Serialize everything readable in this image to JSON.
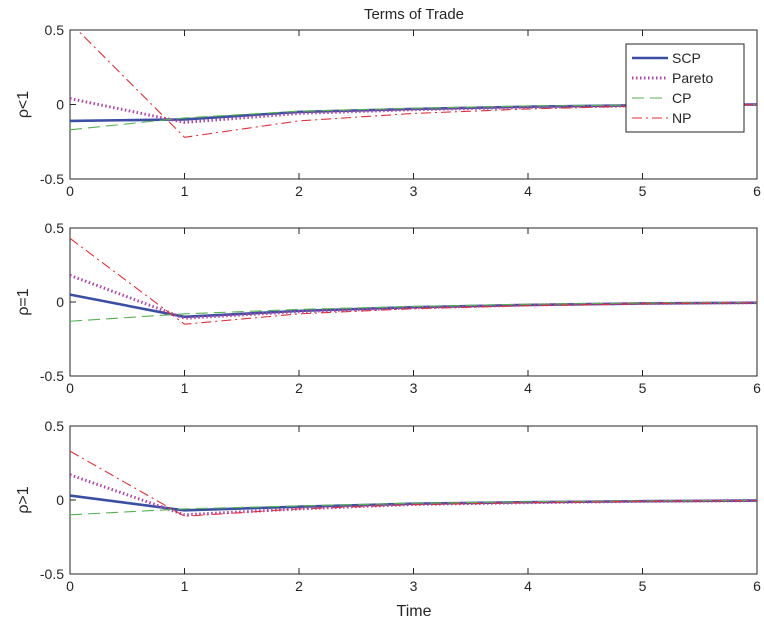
{
  "chart_data": {
    "type": "line",
    "title": "Terms of Trade",
    "xlabel": "Time",
    "xlim": [
      0,
      6
    ],
    "ylim": [
      -0.5,
      0.5
    ],
    "x_ticks": [
      "0",
      "1",
      "2",
      "3",
      "4",
      "5",
      "6"
    ],
    "y_ticks": [
      "-0.5",
      "0",
      "0.5"
    ],
    "grid": false,
    "legend_position": "top-right",
    "legend": [
      "SCP",
      "Pareto",
      "CP",
      "NP"
    ],
    "series_styles": {
      "SCP": {
        "color": "#3a4fa3",
        "dash": "solid"
      },
      "Pareto": {
        "color": "#b044a8",
        "dash": "dotted"
      },
      "CP": {
        "color": "#55b34f",
        "dash": "dashed"
      },
      "NP": {
        "color": "#e0303a",
        "dash": "dashdot"
      }
    },
    "x": [
      0,
      1,
      2,
      3,
      4,
      5,
      6
    ],
    "panels": [
      {
        "ylabel": "ρ<1",
        "series": [
          {
            "name": "SCP",
            "values": [
              -0.11,
              -0.1,
              -0.05,
              -0.03,
              -0.015,
              -0.005,
              0.0
            ]
          },
          {
            "name": "Pareto",
            "values": [
              0.04,
              -0.12,
              -0.06,
              -0.035,
              -0.02,
              -0.008,
              0.0
            ]
          },
          {
            "name": "CP",
            "values": [
              -0.17,
              -0.09,
              -0.045,
              -0.025,
              -0.01,
              -0.003,
              0.0
            ]
          },
          {
            "name": "NP",
            "values": [
              0.55,
              -0.22,
              -0.11,
              -0.06,
              -0.03,
              -0.01,
              0.0
            ]
          }
        ]
      },
      {
        "ylabel": "ρ=1",
        "series": [
          {
            "name": "SCP",
            "values": [
              0.05,
              -0.1,
              -0.06,
              -0.035,
              -0.02,
              -0.01,
              -0.005
            ]
          },
          {
            "name": "Pareto",
            "values": [
              0.18,
              -0.11,
              -0.065,
              -0.04,
              -0.02,
              -0.01,
              -0.005
            ]
          },
          {
            "name": "CP",
            "values": [
              -0.13,
              -0.08,
              -0.05,
              -0.03,
              -0.015,
              -0.007,
              -0.003
            ]
          },
          {
            "name": "NP",
            "values": [
              0.43,
              -0.15,
              -0.08,
              -0.045,
              -0.025,
              -0.012,
              -0.005
            ]
          }
        ]
      },
      {
        "ylabel": "ρ>1",
        "series": [
          {
            "name": "SCP",
            "values": [
              0.03,
              -0.07,
              -0.045,
              -0.025,
              -0.015,
              -0.008,
              -0.004
            ]
          },
          {
            "name": "Pareto",
            "values": [
              0.17,
              -0.1,
              -0.06,
              -0.03,
              -0.018,
              -0.009,
              -0.004
            ]
          },
          {
            "name": "CP",
            "values": [
              -0.1,
              -0.06,
              -0.04,
              -0.022,
              -0.012,
              -0.006,
              -0.003
            ]
          },
          {
            "name": "NP",
            "values": [
              0.33,
              -0.11,
              -0.06,
              -0.032,
              -0.018,
              -0.009,
              -0.004
            ]
          }
        ]
      }
    ]
  }
}
